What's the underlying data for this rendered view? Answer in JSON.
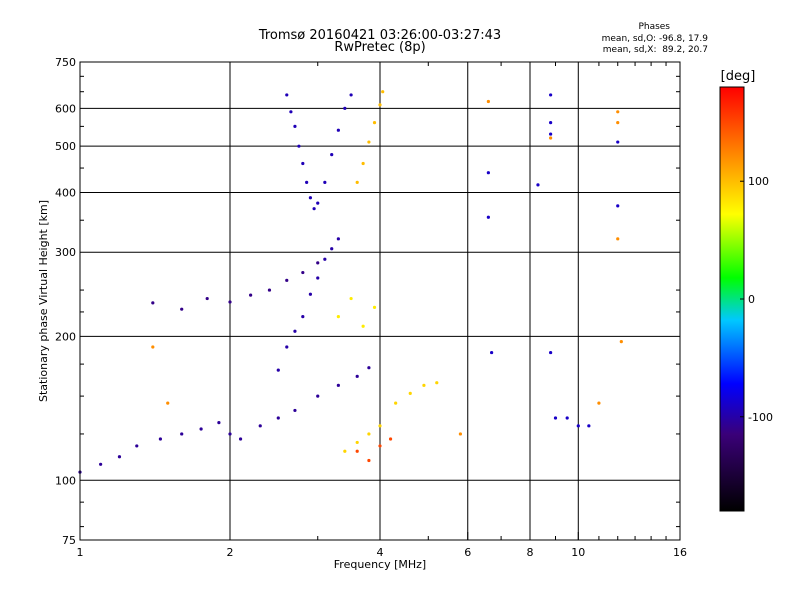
{
  "title_line1": "Tromsø 20160421 03:26:00-03:27:43",
  "title_line2": "RwPretec (8p)",
  "phase_box": {
    "heading": "Phases",
    "line_o": "mean, sd,O: -96.8, 17.9",
    "line_x": "mean, sd,X:  89.2, 20.7"
  },
  "chart_data": {
    "type": "scatter",
    "xlabel": "Frequency [MHz]",
    "ylabel": "Stationary phase Virtual Height [km]",
    "x_scale": "log",
    "y_scale": "log",
    "xlim": [
      1,
      16
    ],
    "ylim": [
      75,
      750
    ],
    "x_ticks": [
      1,
      2,
      4,
      6,
      8,
      10,
      16
    ],
    "x_tick_labels": [
      "1",
      "2",
      "4",
      "6",
      "8",
      "10",
      "16"
    ],
    "y_ticks": [
      75,
      100,
      200,
      300,
      400,
      500,
      600,
      750
    ],
    "y_tick_labels": [
      "75",
      "100",
      "200",
      "300",
      "400",
      "500",
      "600",
      "750"
    ],
    "grid": true,
    "colorbar": {
      "label": "[deg]",
      "ticks": [
        100,
        0,
        -100
      ],
      "tick_labels": [
        "100",
        "0",
        "-100"
      ],
      "range": [
        -180,
        180
      ]
    },
    "clusters": [
      {
        "name": "",
        "phase": -105,
        "points": [
          [
            1.0,
            104
          ],
          [
            1.1,
            108
          ],
          [
            1.2,
            112
          ],
          [
            1.3,
            118
          ],
          [
            1.45,
            122
          ],
          [
            1.6,
            125
          ],
          [
            1.75,
            128
          ],
          [
            1.9,
            132
          ],
          [
            2.0,
            125
          ],
          [
            2.1,
            122
          ],
          [
            2.3,
            130
          ],
          [
            2.5,
            135
          ],
          [
            2.7,
            140
          ],
          [
            3.0,
            150
          ],
          [
            3.3,
            158
          ],
          [
            3.6,
            165
          ],
          [
            3.8,
            172
          ]
        ]
      },
      {
        "name": "",
        "phase": -110,
        "points": [
          [
            1.4,
            235
          ],
          [
            1.6,
            228
          ],
          [
            1.8,
            240
          ],
          [
            2.0,
            236
          ],
          [
            2.2,
            244
          ],
          [
            2.4,
            250
          ],
          [
            2.6,
            262
          ],
          [
            2.8,
            272
          ],
          [
            3.0,
            285
          ]
        ]
      },
      {
        "name": "",
        "phase": -100,
        "points": [
          [
            2.5,
            170
          ],
          [
            2.6,
            190
          ],
          [
            2.7,
            205
          ],
          [
            2.8,
            220
          ],
          [
            2.9,
            245
          ],
          [
            3.0,
            265
          ],
          [
            3.1,
            290
          ],
          [
            3.2,
            305
          ],
          [
            3.3,
            320
          ]
        ]
      },
      {
        "name": "",
        "phase": -95,
        "points": [
          [
            2.6,
            640
          ],
          [
            2.65,
            590
          ],
          [
            2.7,
            550
          ],
          [
            2.75,
            500
          ],
          [
            2.8,
            460
          ],
          [
            2.85,
            420
          ],
          [
            2.9,
            390
          ],
          [
            2.95,
            370
          ],
          [
            3.0,
            380
          ],
          [
            3.1,
            420
          ],
          [
            3.2,
            480
          ],
          [
            3.3,
            540
          ],
          [
            3.4,
            600
          ],
          [
            3.5,
            640
          ]
        ]
      },
      {
        "name": "",
        "phase": 100,
        "points": [
          [
            3.6,
            420
          ],
          [
            3.7,
            460
          ],
          [
            3.8,
            510
          ],
          [
            3.9,
            560
          ],
          [
            4.0,
            610
          ],
          [
            4.05,
            650
          ]
        ]
      },
      {
        "name": "",
        "phase": 90,
        "points": [
          [
            3.4,
            115
          ],
          [
            3.6,
            120
          ],
          [
            3.8,
            125
          ],
          [
            4.0,
            130
          ],
          [
            4.3,
            145
          ],
          [
            4.6,
            152
          ],
          [
            4.9,
            158
          ],
          [
            5.2,
            160
          ]
        ]
      },
      {
        "name": "",
        "phase": 80,
        "points": [
          [
            3.3,
            220
          ],
          [
            3.5,
            240
          ],
          [
            3.7,
            210
          ],
          [
            3.9,
            230
          ]
        ]
      },
      {
        "name": "",
        "phase": 150,
        "points": [
          [
            3.6,
            115
          ],
          [
            3.8,
            110
          ],
          [
            4.0,
            118
          ],
          [
            4.2,
            122
          ]
        ]
      },
      {
        "name": "",
        "phase": -90,
        "points": [
          [
            6.6,
            440
          ],
          [
            6.6,
            355
          ],
          [
            6.7,
            185
          ],
          [
            8.3,
            415
          ],
          [
            8.8,
            640
          ],
          [
            8.8,
            560
          ],
          [
            8.8,
            530
          ],
          [
            8.8,
            185
          ],
          [
            9.0,
            135
          ],
          [
            9.5,
            135
          ],
          [
            10.0,
            130
          ],
          [
            10.5,
            130
          ],
          [
            12.0,
            510
          ],
          [
            12.0,
            375
          ]
        ]
      },
      {
        "name": "",
        "phase": 120,
        "points": [
          [
            6.6,
            620
          ],
          [
            8.8,
            520
          ],
          [
            12.0,
            590
          ],
          [
            12.0,
            560
          ],
          [
            12.0,
            320
          ],
          [
            12.2,
            195
          ],
          [
            11.0,
            145
          ],
          [
            5.8,
            125
          ],
          [
            1.4,
            190
          ],
          [
            1.5,
            145
          ]
        ]
      }
    ]
  }
}
